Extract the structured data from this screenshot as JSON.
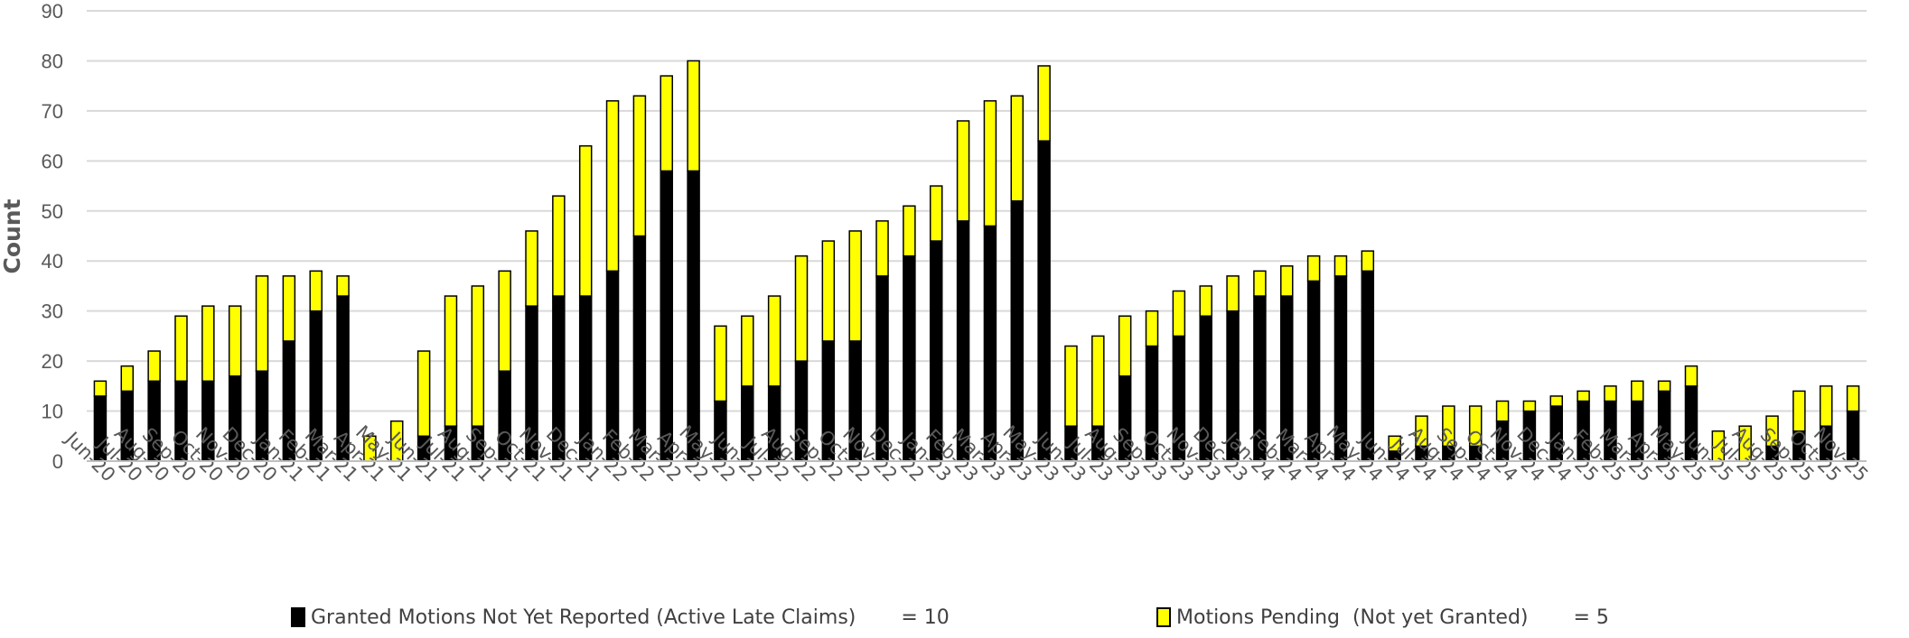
{
  "chart_data": {
    "type": "bar",
    "stacked": true,
    "title": "",
    "xlabel": "",
    "ylabel": "Count",
    "ylim": [
      0,
      90
    ],
    "yticks": [
      0,
      10,
      20,
      30,
      40,
      50,
      60,
      70,
      80,
      90
    ],
    "grid": true,
    "legend_position": "bottom",
    "categories": [
      "Jun-20",
      "Jul-20",
      "Aug-20",
      "Sep-20",
      "Oct-20",
      "Nov-20",
      "Dec-20",
      "Jan-21",
      "Feb-21",
      "Mar-21",
      "Apr-21",
      "May-21",
      "Jun-21",
      "Jul-21",
      "Aug-21",
      "Sep-21",
      "Oct-21",
      "Nov-21",
      "Dec-21",
      "Jan-22",
      "Feb-22",
      "Mar-22",
      "Apr-22",
      "May-22",
      "Jun-22",
      "Jul-22",
      "Aug-22",
      "Sep-22",
      "Oct-22",
      "Nov-22",
      "Dec-22",
      "Jan-23",
      "Feb-23",
      "Mar-23",
      "Apr-23",
      "May-23",
      "Jun-23",
      "Jul-23",
      "Aug-23",
      "Sep-23",
      "Oct-23",
      "Nov-23",
      "Dec-23",
      "Jan-24",
      "Feb-24",
      "Mar-24",
      "Apr-24",
      "May-24",
      "Jun-24",
      "Jul-24",
      "Aug-24",
      "Sep-24",
      "Oct-24",
      "Nov-24",
      "Dec-24",
      "Jan-25",
      "Feb-25",
      "Mar-25",
      "Apr-25",
      "May-25",
      "Jun-25",
      "Jul-25",
      "Aug-25",
      "Sep-25",
      "Oct-25",
      "Nov-25"
    ],
    "series": [
      {
        "name": "Granted Motions Not Yet Reported (Active Late Claims)",
        "color": "#000000",
        "values": [
          13,
          14,
          16,
          16,
          16,
          17,
          18,
          24,
          30,
          33,
          0,
          0,
          5,
          7,
          7,
          18,
          31,
          33,
          33,
          38,
          45,
          58,
          58,
          12,
          15,
          15,
          20,
          24,
          24,
          37,
          41,
          44,
          48,
          47,
          52,
          64,
          7,
          7,
          17,
          23,
          25,
          29,
          30,
          33,
          33,
          36,
          37,
          38,
          2,
          3,
          3,
          3,
          8,
          10,
          11,
          12,
          12,
          12,
          14,
          15,
          0,
          0,
          3,
          6,
          7,
          10
        ]
      },
      {
        "name": "Motions Pending  (Not yet Granted)",
        "color": "#FFFF00",
        "values": [
          3,
          5,
          6,
          13,
          15,
          14,
          19,
          13,
          8,
          4,
          5,
          8,
          17,
          26,
          28,
          20,
          15,
          20,
          30,
          34,
          28,
          19,
          22,
          15,
          14,
          18,
          21,
          20,
          22,
          11,
          10,
          11,
          20,
          25,
          21,
          15,
          16,
          18,
          12,
          7,
          9,
          6,
          7,
          5,
          6,
          5,
          4,
          4,
          3,
          6,
          8,
          8,
          4,
          2,
          2,
          2,
          3,
          4,
          2,
          4,
          6,
          7,
          6,
          8,
          8,
          5
        ]
      }
    ],
    "legend_values": [
      "= 10",
      "= 5"
    ]
  }
}
